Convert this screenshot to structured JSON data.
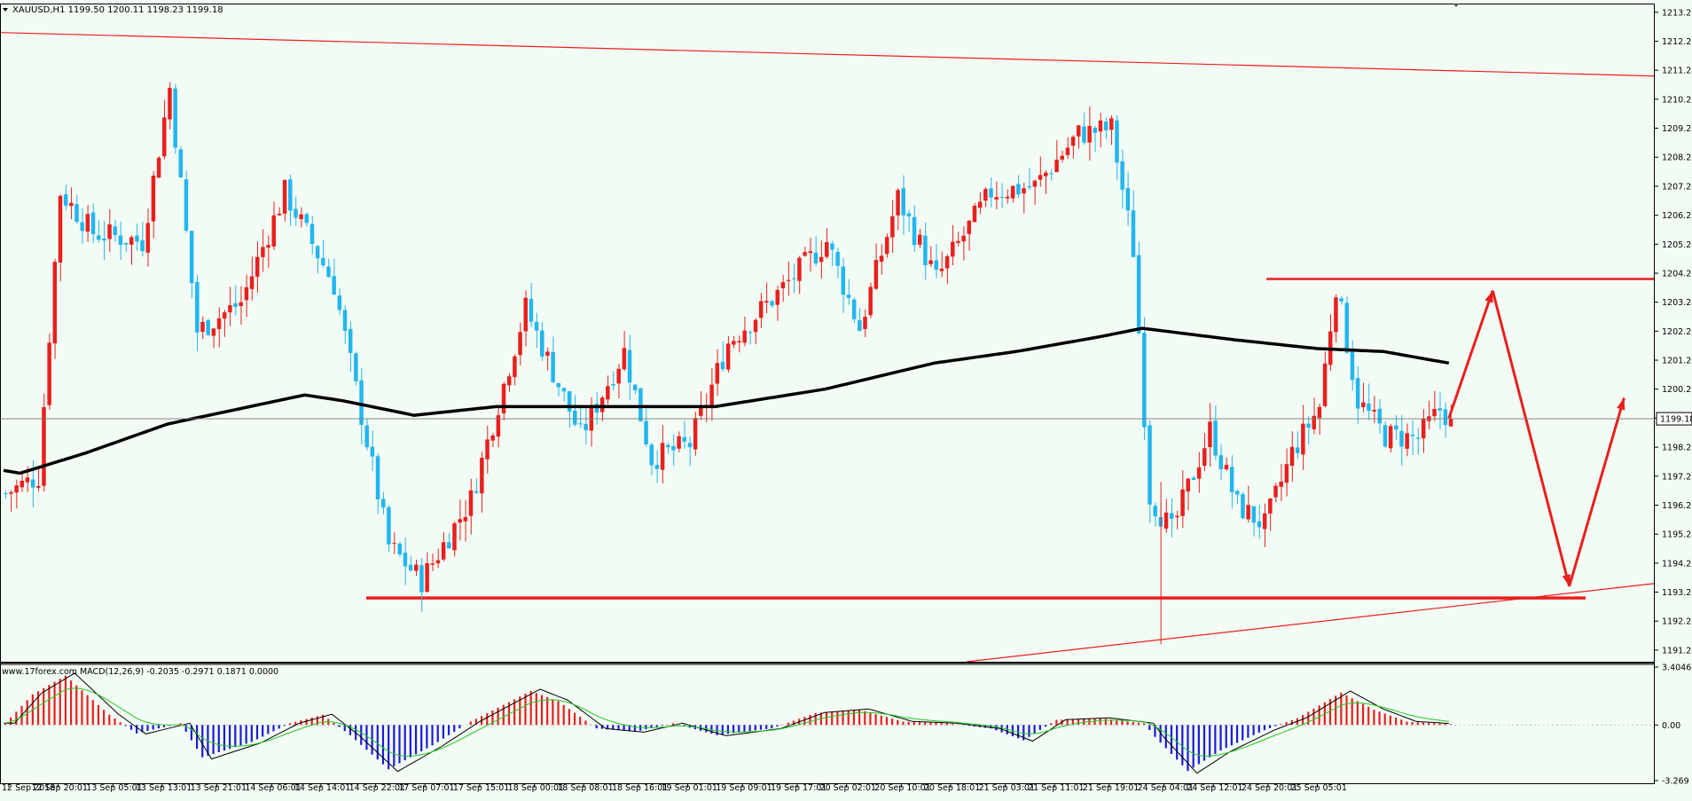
{
  "chart_data": [
    {
      "type": "candlestick",
      "title": "XAUUSD,H1  1199.50 1200.11 1198.23 1199.18",
      "symbol": "XAUUSD",
      "timeframe": "H1",
      "ohlc_header": "1199.50 1200.11 1198.23 1199.18",
      "current_price": "1199.18",
      "ylim": [
        1190.8,
        1213.5
      ],
      "y_ticks": [
        "1213.20",
        "1212.20",
        "1211.20",
        "1210.20",
        "1209.20",
        "1208.20",
        "1207.20",
        "1206.20",
        "1205.20",
        "1204.20",
        "1203.20",
        "1202.20",
        "1201.20",
        "1200.20",
        "1199.20",
        "1198.20",
        "1197.20",
        "1196.20",
        "1195.20",
        "1194.20",
        "1193.20",
        "1192.20",
        "1191.20"
      ],
      "x_ticks": [
        "12 Sep 2018",
        "12 Sep 20:01",
        "13 Sep 05:01",
        "13 Sep 13:01",
        "13 Sep 21:01",
        "14 Sep 06:01",
        "14 Sep 14:01",
        "14 Sep 22:01",
        "17 Sep 07:01",
        "17 Sep 15:01",
        "18 Sep 00:01",
        "18 Sep 08:01",
        "18 Sep 16:01",
        "19 Sep 01:01",
        "19 Sep 09:01",
        "19 Sep 17:01",
        "20 Sep 02:01",
        "20 Sep 10:01",
        "20 Sep 18:01",
        "21 Sep 03:01",
        "21 Sep 11:01",
        "21 Sep 19:01",
        "24 Sep 04:01",
        "24 Sep 12:01",
        "24 Sep 20:01",
        "25 Sep 05:01"
      ],
      "key_prices": [
        {
          "bar": 0,
          "price": 1196.6
        },
        {
          "bar": 6,
          "price": 1197.2
        },
        {
          "bar": 10,
          "price": 1207.0
        },
        {
          "bar": 16,
          "price": 1205.6
        },
        {
          "bar": 25,
          "price": 1205.3
        },
        {
          "bar": 30,
          "price": 1210.6
        },
        {
          "bar": 35,
          "price": 1202.2
        },
        {
          "bar": 43,
          "price": 1203.2
        },
        {
          "bar": 51,
          "price": 1207.0
        },
        {
          "bar": 60,
          "price": 1203.8
        },
        {
          "bar": 70,
          "price": 1194.8
        },
        {
          "bar": 76,
          "price": 1193.6
        },
        {
          "bar": 85,
          "price": 1196.4
        },
        {
          "bar": 95,
          "price": 1203.0
        },
        {
          "bar": 105,
          "price": 1198.6
        },
        {
          "bar": 113,
          "price": 1201.5
        },
        {
          "bar": 118,
          "price": 1197.8
        },
        {
          "bar": 125,
          "price": 1198.3
        },
        {
          "bar": 132,
          "price": 1201.8
        },
        {
          "bar": 141,
          "price": 1203.5
        },
        {
          "bar": 150,
          "price": 1205.3
        },
        {
          "bar": 156,
          "price": 1202.3
        },
        {
          "bar": 163,
          "price": 1206.8
        },
        {
          "bar": 170,
          "price": 1204.0
        },
        {
          "bar": 180,
          "price": 1207.0
        },
        {
          "bar": 188,
          "price": 1207.2
        },
        {
          "bar": 196,
          "price": 1209.0
        },
        {
          "bar": 202,
          "price": 1209.2
        },
        {
          "bar": 206,
          "price": 1205.0
        },
        {
          "bar": 209,
          "price": 1196.5
        },
        {
          "bar": 213,
          "price": 1195.3
        },
        {
          "bar": 220,
          "price": 1198.8
        },
        {
          "bar": 225,
          "price": 1196.2
        },
        {
          "bar": 230,
          "price": 1195.5
        },
        {
          "bar": 235,
          "price": 1198.0
        },
        {
          "bar": 240,
          "price": 1199.6
        },
        {
          "bar": 243,
          "price": 1203.8
        },
        {
          "bar": 247,
          "price": 1199.8
        },
        {
          "bar": 252,
          "price": 1198.6
        },
        {
          "bar": 258,
          "price": 1198.5
        },
        {
          "bar": 262,
          "price": 1199.5
        },
        {
          "bar": 264,
          "price": 1199.18
        }
      ],
      "moving_average": [
        {
          "bar": 0,
          "price": 1197.4
        },
        {
          "bar": 3,
          "price": 1197.3
        },
        {
          "bar": 15,
          "price": 1198.0
        },
        {
          "bar": 30,
          "price": 1199.0
        },
        {
          "bar": 45,
          "price": 1199.6
        },
        {
          "bar": 55,
          "price": 1200.0
        },
        {
          "bar": 62,
          "price": 1199.8
        },
        {
          "bar": 75,
          "price": 1199.3
        },
        {
          "bar": 90,
          "price": 1199.6
        },
        {
          "bar": 110,
          "price": 1199.6
        },
        {
          "bar": 130,
          "price": 1199.6
        },
        {
          "bar": 150,
          "price": 1200.2
        },
        {
          "bar": 170,
          "price": 1201.1
        },
        {
          "bar": 185,
          "price": 1201.5
        },
        {
          "bar": 200,
          "price": 1202.0
        },
        {
          "bar": 208,
          "price": 1202.3
        },
        {
          "bar": 225,
          "price": 1201.9
        },
        {
          "bar": 240,
          "price": 1201.6
        },
        {
          "bar": 252,
          "price": 1201.5
        },
        {
          "bar": 264,
          "price": 1201.1
        }
      ],
      "annotations": {
        "support_level": 1193.0,
        "resistance_level": 1204.0,
        "projected_path": [
          {
            "bar": 264,
            "price": 1199.2
          },
          {
            "bar": 272,
            "price": 1203.6
          },
          {
            "bar": 286,
            "price": 1193.4
          },
          {
            "bar": 296,
            "price": 1199.9
          }
        ]
      }
    },
    {
      "type": "histogram",
      "indicator": "MACD",
      "title": "www.17forex.com MACD(12,26,9) -0.2035 -0.2971 0.1871 0.0000",
      "watermark": "WWW.17FOREX.COM",
      "label": "MACD(12,26,9) -0.2035 -0.2971 0.1871 0.0000",
      "ylim": [
        -3.269,
        3.4046
      ],
      "y_ticks": [
        "3.4046",
        "0.00",
        "-3.269"
      ],
      "key_values": [
        {
          "bar": 0,
          "value": 0.1
        },
        {
          "bar": 5,
          "value": 1.8
        },
        {
          "bar": 11,
          "value": 2.9
        },
        {
          "bar": 19,
          "value": 0.6
        },
        {
          "bar": 24,
          "value": -0.5
        },
        {
          "bar": 32,
          "value": 0.1
        },
        {
          "bar": 36,
          "value": -1.9
        },
        {
          "bar": 45,
          "value": -1.0
        },
        {
          "bar": 52,
          "value": 0.1
        },
        {
          "bar": 58,
          "value": 0.6
        },
        {
          "bar": 63,
          "value": -0.6
        },
        {
          "bar": 70,
          "value": -2.6
        },
        {
          "bar": 78,
          "value": -1.2
        },
        {
          "bar": 85,
          "value": 0.2
        },
        {
          "bar": 96,
          "value": 2.0
        },
        {
          "bar": 101,
          "value": 1.4
        },
        {
          "bar": 108,
          "value": -0.2
        },
        {
          "bar": 115,
          "value": -0.4
        },
        {
          "bar": 122,
          "value": 0.1
        },
        {
          "bar": 130,
          "value": -0.6
        },
        {
          "bar": 140,
          "value": -0.2
        },
        {
          "bar": 148,
          "value": 0.7
        },
        {
          "bar": 156,
          "value": 0.9
        },
        {
          "bar": 164,
          "value": 0.2
        },
        {
          "bar": 172,
          "value": 0.1
        },
        {
          "bar": 180,
          "value": -0.2
        },
        {
          "bar": 186,
          "value": -0.9
        },
        {
          "bar": 192,
          "value": 0.3
        },
        {
          "bar": 200,
          "value": 0.4
        },
        {
          "bar": 208,
          "value": 0.1
        },
        {
          "bar": 210,
          "value": -0.7
        },
        {
          "bar": 216,
          "value": -2.7
        },
        {
          "bar": 222,
          "value": -1.5
        },
        {
          "bar": 230,
          "value": -0.3
        },
        {
          "bar": 236,
          "value": 0.4
        },
        {
          "bar": 244,
          "value": 1.9
        },
        {
          "bar": 250,
          "value": 0.9
        },
        {
          "bar": 256,
          "value": 0.2
        },
        {
          "bar": 264,
          "value": 0.05
        }
      ]
    }
  ]
}
